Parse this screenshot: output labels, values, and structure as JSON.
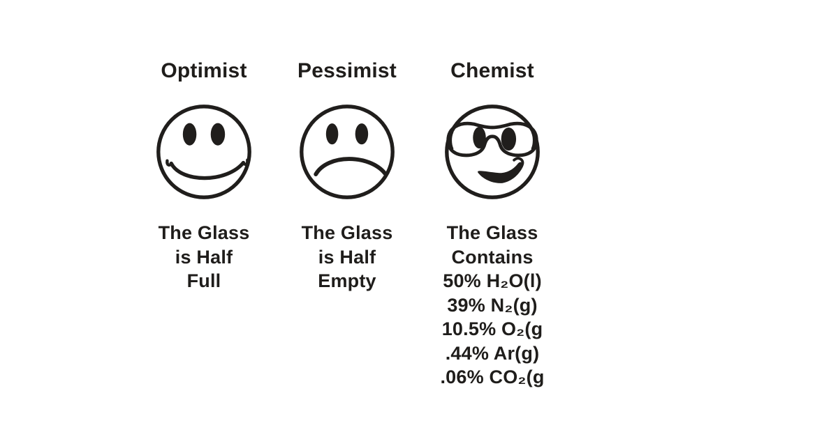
{
  "meme": {
    "columns": [
      {
        "title": "Optimist",
        "face_icon": "happy-smiley-icon",
        "caption_lines": [
          "The Glass",
          "is Half",
          "Full"
        ]
      },
      {
        "title": "Pessimist",
        "face_icon": "sad-smiley-icon",
        "caption_lines": [
          "The Glass",
          "is Half",
          "Empty"
        ]
      },
      {
        "title": "Chemist",
        "face_icon": "goggles-smiley-icon",
        "caption_lines": [
          "The Glass",
          "Contains",
          "50% H₂O(l)",
          "39% N₂(g)",
          "10.5% O₂(g",
          ".44% Ar(g)",
          ".06% CO₂(g"
        ]
      }
    ],
    "colors": {
      "page_bg": "#ffffff",
      "face_fill": "#f5e409",
      "outline": "#201e1c",
      "text": "#1f1d1b"
    }
  }
}
